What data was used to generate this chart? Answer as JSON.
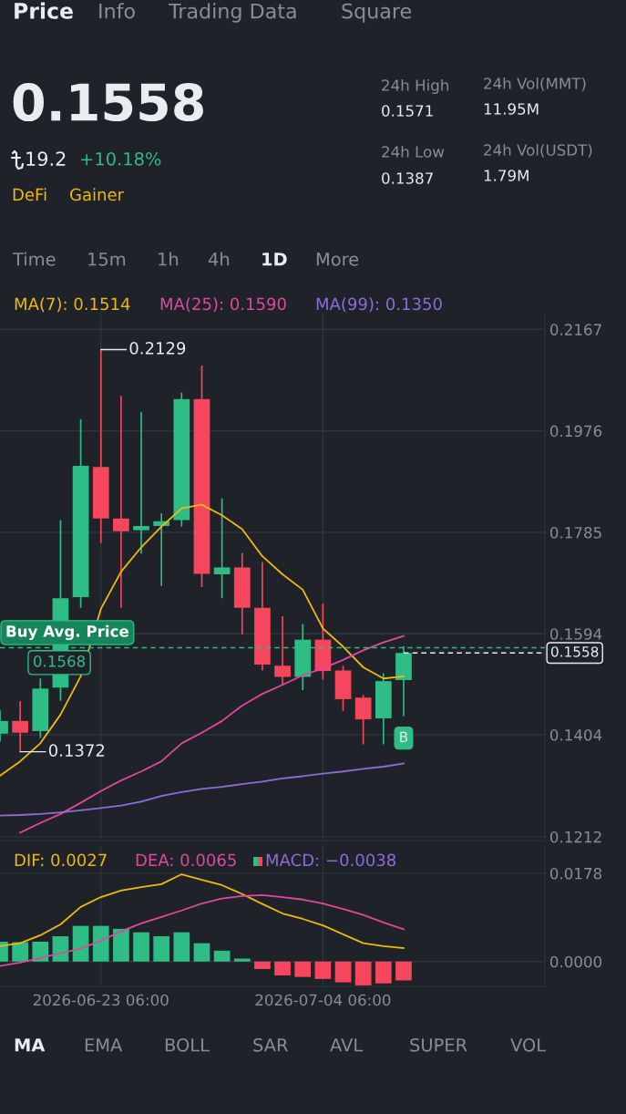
{
  "chart_data": [
    {
      "type": "other",
      "annotations": [
        "Price",
        "Info",
        "Trading Data",
        "Square",
        "0.1558",
        "19.2",
        "+10.18%",
        "DeFi",
        "Gainer",
        "24h High",
        "0.1571",
        "24h Vol(MMT)",
        "11.95M",
        "24h Low",
        "0.1387",
        "24h Vol(USDT)",
        "1.79M",
        "Time",
        "15m",
        "1h",
        "4h",
        "1D",
        "More"
      ]
    },
    {
      "type": "candlestick",
      "x": [
        "2026-06-18T06:00",
        "2026-06-19T06:00",
        "2026-06-20T06:00",
        "2026-06-21T06:00",
        "2026-06-22T06:00",
        "2026-06-23T06:00",
        "2026-06-24T06:00",
        "2026-06-25T06:00",
        "2026-06-26T06:00",
        "2026-06-27T06:00",
        "2026-06-28T06:00",
        "2026-06-29T06:00",
        "2026-06-30T06:00",
        "2026-07-01T06:00",
        "2026-07-02T06:00",
        "2026-07-03T06:00",
        "2026-07-04T06:00",
        "2026-07-05T06:00",
        "2026-07-06T06:00",
        "2026-07-07T06:00",
        "2026-07-08T06:00"
      ],
      "ohlc": [
        [
          0.1406,
          0.145,
          0.1391,
          0.143
        ],
        [
          0.143,
          0.1467,
          0.1372,
          0.1408
        ],
        [
          0.1411,
          0.151,
          0.1398,
          0.1491
        ],
        [
          0.1493,
          0.1808,
          0.1468,
          0.1661
        ],
        [
          0.1663,
          0.1998,
          0.1643,
          0.191
        ],
        [
          0.1908,
          0.2129,
          0.1765,
          0.1811
        ],
        [
          0.1811,
          0.2042,
          0.1643,
          0.1787
        ],
        [
          0.1789,
          0.2012,
          0.1745,
          0.1797
        ],
        [
          0.1797,
          0.1821,
          0.1684,
          0.1806
        ],
        [
          0.1808,
          0.2048,
          0.1796,
          0.2036
        ],
        [
          0.2036,
          0.2099,
          0.1682,
          0.1707
        ],
        [
          0.1706,
          0.1849,
          0.1661,
          0.1719
        ],
        [
          0.1719,
          0.1746,
          0.1593,
          0.1643
        ],
        [
          0.1643,
          0.1729,
          0.1525,
          0.1536
        ],
        [
          0.1534,
          0.1627,
          0.1498,
          0.1513
        ],
        [
          0.1513,
          0.1612,
          0.1488,
          0.1583
        ],
        [
          0.1583,
          0.1651,
          0.1508,
          0.1524
        ],
        [
          0.1525,
          0.1534,
          0.1449,
          0.1471
        ],
        [
          0.1474,
          0.1479,
          0.1386,
          0.1433
        ],
        [
          0.1435,
          0.152,
          0.1386,
          0.1505
        ],
        [
          0.1507,
          0.1571,
          0.1439,
          0.1558
        ]
      ],
      "colors": [
        "#2ebd85",
        "#f6465d",
        "#2ebd85",
        "#2ebd85",
        "#2ebd85",
        "#f6465d",
        "#f6465d",
        "#2ebd85",
        "#2ebd85",
        "#2ebd85",
        "#f6465d",
        "#2ebd85",
        "#f6465d",
        "#f6465d",
        "#f6465d",
        "#2ebd85",
        "#f6465d",
        "#f6465d",
        "#f6465d",
        "#2ebd85",
        "#2ebd85"
      ],
      "series": [
        {
          "name": "MA(7): 0.1514",
          "type": "line",
          "color": "#f0b90b",
          "values": [
            0.1327,
            0.1354,
            0.1388,
            0.1442,
            0.1514,
            0.1641,
            0.1711,
            0.1757,
            0.1796,
            0.183,
            0.1837,
            0.1817,
            0.1791,
            0.174,
            0.1706,
            0.1677,
            0.1604,
            0.157,
            0.1531,
            0.151,
            0.1514
          ]
        },
        {
          "name": "MA(25): 0.1590",
          "type": "line",
          "color": "#e0489f",
          "values": [
            null,
            0.122,
            0.1238,
            0.1255,
            0.1276,
            0.1298,
            0.1318,
            0.1335,
            0.1354,
            0.1388,
            0.1408,
            0.143,
            0.1459,
            0.1481,
            0.1498,
            0.1516,
            0.1529,
            0.1545,
            0.1563,
            0.1578,
            0.159
          ]
        },
        {
          "name": "MA(99): 0.1350",
          "type": "line",
          "color": "#8e6bd8",
          "values": [
            0.1252,
            0.1253,
            0.1255,
            0.1258,
            0.1262,
            0.1266,
            0.1271,
            0.1278,
            0.1289,
            0.1296,
            0.1302,
            0.1306,
            0.1311,
            0.1316,
            0.1322,
            0.1326,
            0.1331,
            0.1335,
            0.134,
            0.1344,
            0.135
          ]
        }
      ],
      "xlim": [
        "2026-06-18T06:00",
        "2026-07-15T06:00"
      ],
      "xticks": [
        {
          "value": "2026-06-23T06:00",
          "label": null
        },
        {
          "value": "2026-07-04T06:00",
          "label": null
        }
      ],
      "ylim": [
        0.1205,
        0.2195
      ],
      "yticks": [
        0.2167,
        0.1976,
        0.1785,
        0.1594,
        0.1404,
        0.1212
      ],
      "tick_labels": "y",
      "grid": true,
      "ref_lines": [
        {
          "axis": "y",
          "value": 0.1568,
          "label": "Buy Avg. Price\n0.1568",
          "color": "#2ebd85",
          "line_style": "dashed"
        },
        {
          "axis": "y",
          "value": 0.1558,
          "label": "0.1558",
          "color": "#eaecef",
          "line_style": "dashed"
        }
      ],
      "annotations": [
        {
          "text": "0.2129",
          "x": "2026-06-23T06:00",
          "y": 0.2129
        },
        {
          "text": "0.1372",
          "x": "2026-06-19T06:00",
          "y": 0.1372
        },
        {
          "text": "B",
          "x": "2026-07-08T06:00",
          "y": 0.1439
        }
      ]
    },
    {
      "type": "bar",
      "x": [
        "2026-06-18T06:00",
        "2026-06-19T06:00",
        "2026-06-20T06:00",
        "2026-06-21T06:00",
        "2026-06-22T06:00",
        "2026-06-23T06:00",
        "2026-06-24T06:00",
        "2026-06-25T06:00",
        "2026-06-26T06:00",
        "2026-06-27T06:00",
        "2026-06-28T06:00",
        "2026-06-29T06:00",
        "2026-06-30T06:00",
        "2026-07-01T06:00",
        "2026-07-02T06:00",
        "2026-07-03T06:00",
        "2026-07-04T06:00",
        "2026-07-05T06:00",
        "2026-07-06T06:00",
        "2026-07-07T06:00",
        "2026-07-08T06:00"
      ],
      "series": [
        {
          "name": "DIF: 0.0027",
          "type": "line",
          "color": "#f0b90b",
          "values": [
            0.0031,
            0.0037,
            0.0053,
            0.0075,
            0.011,
            0.013,
            0.0143,
            0.015,
            0.0156,
            0.0176,
            0.0165,
            0.0154,
            0.0136,
            0.0116,
            0.0097,
            0.0086,
            0.0073,
            0.0055,
            0.0037,
            0.0031,
            0.0027
          ]
        },
        {
          "name": "DEA: 0.0065",
          "type": "line",
          "color": "#e0489f",
          "values": [
            -0.0009,
            -0.0002,
            0.0007,
            0.0017,
            0.0026,
            0.0042,
            0.0061,
            0.0077,
            0.009,
            0.0103,
            0.0117,
            0.0127,
            0.0132,
            0.0134,
            0.013,
            0.0125,
            0.0117,
            0.0106,
            0.0094,
            0.0079,
            0.0065
          ]
        },
        {
          "name": "MACD: −0.0038",
          "type": "bar",
          "color": "#8e6bd8",
          "values": [
            0.004,
            0.0039,
            0.004,
            0.0051,
            0.0072,
            0.0072,
            0.0066,
            0.0059,
            0.0051,
            0.0059,
            0.0037,
            0.0022,
            0.0006,
            -0.0015,
            -0.0028,
            -0.0031,
            -0.0035,
            -0.0042,
            -0.0048,
            -0.0044,
            -0.0038
          ],
          "colors": [
            "#2ebd85",
            "#2ebd85",
            "#2ebd85",
            "#2ebd85",
            "#2ebd85",
            "#2ebd85",
            "#2ebd85",
            "#2ebd85",
            "#2ebd85",
            "#2ebd85",
            "#2ebd85",
            "#2ebd85",
            "#2ebd85",
            "#f6465d",
            "#f6465d",
            "#f6465d",
            "#f6465d",
            "#f6465d",
            "#f6465d",
            "#f6465d",
            "#f6465d"
          ]
        }
      ],
      "xlim": [
        "2026-06-18T06:00",
        "2026-07-15T06:00"
      ],
      "xticks": [
        {
          "value": "2026-06-23T06:00",
          "label": "2026-06-23 06:00"
        },
        {
          "value": "2026-07-04T06:00",
          "label": "2026-07-04 06:00"
        }
      ],
      "ylim": [
        -0.005,
        0.0233
      ],
      "yticks": [
        0.0178,
        {
          "value": 0,
          "label": "0.0000"
        }
      ],
      "grid": true
    },
    {
      "type": "other",
      "annotations": [
        "MA",
        "EMA",
        "BOLL",
        "SAR",
        "AVL",
        "SUPER",
        "VOL"
      ]
    }
  ]
}
